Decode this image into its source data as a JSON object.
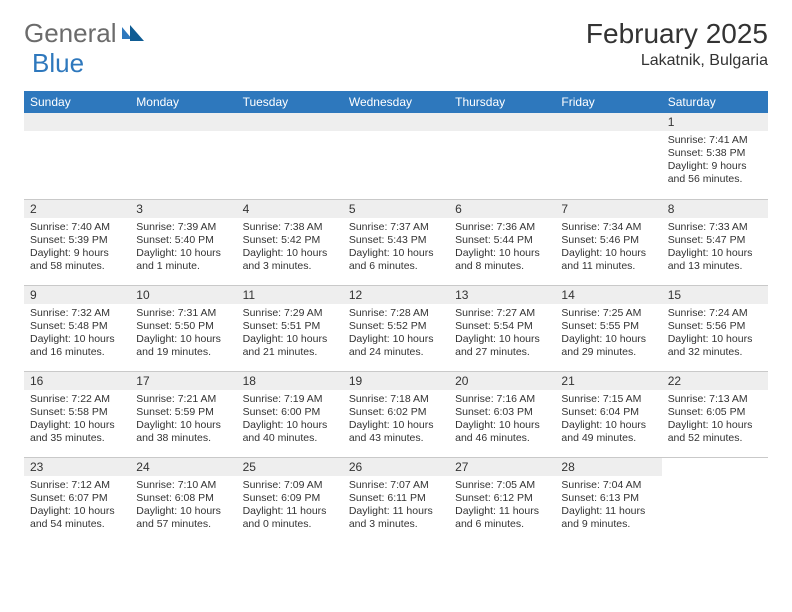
{
  "brand": {
    "part1": "General",
    "part2": "Blue"
  },
  "header": {
    "month": "February 2025",
    "location": "Lakatnik, Bulgaria"
  },
  "colors": {
    "header_bg": "#2e78bd",
    "daynum_bg": "#eeeeee",
    "border": "#c9c9c9",
    "text": "#333333",
    "page_bg": "#ffffff"
  },
  "dayNames": [
    "Sunday",
    "Monday",
    "Tuesday",
    "Wednesday",
    "Thursday",
    "Friday",
    "Saturday"
  ],
  "layout": {
    "weeks": 5,
    "cols": 7,
    "first_day_col": 6
  },
  "days": [
    {
      "n": "1",
      "sr": "Sunrise: 7:41 AM",
      "ss": "Sunset: 5:38 PM",
      "dl1": "Daylight: 9 hours",
      "dl2": "and 56 minutes."
    },
    {
      "n": "2",
      "sr": "Sunrise: 7:40 AM",
      "ss": "Sunset: 5:39 PM",
      "dl1": "Daylight: 9 hours",
      "dl2": "and 58 minutes."
    },
    {
      "n": "3",
      "sr": "Sunrise: 7:39 AM",
      "ss": "Sunset: 5:40 PM",
      "dl1": "Daylight: 10 hours",
      "dl2": "and 1 minute."
    },
    {
      "n": "4",
      "sr": "Sunrise: 7:38 AM",
      "ss": "Sunset: 5:42 PM",
      "dl1": "Daylight: 10 hours",
      "dl2": "and 3 minutes."
    },
    {
      "n": "5",
      "sr": "Sunrise: 7:37 AM",
      "ss": "Sunset: 5:43 PM",
      "dl1": "Daylight: 10 hours",
      "dl2": "and 6 minutes."
    },
    {
      "n": "6",
      "sr": "Sunrise: 7:36 AM",
      "ss": "Sunset: 5:44 PM",
      "dl1": "Daylight: 10 hours",
      "dl2": "and 8 minutes."
    },
    {
      "n": "7",
      "sr": "Sunrise: 7:34 AM",
      "ss": "Sunset: 5:46 PM",
      "dl1": "Daylight: 10 hours",
      "dl2": "and 11 minutes."
    },
    {
      "n": "8",
      "sr": "Sunrise: 7:33 AM",
      "ss": "Sunset: 5:47 PM",
      "dl1": "Daylight: 10 hours",
      "dl2": "and 13 minutes."
    },
    {
      "n": "9",
      "sr": "Sunrise: 7:32 AM",
      "ss": "Sunset: 5:48 PM",
      "dl1": "Daylight: 10 hours",
      "dl2": "and 16 minutes."
    },
    {
      "n": "10",
      "sr": "Sunrise: 7:31 AM",
      "ss": "Sunset: 5:50 PM",
      "dl1": "Daylight: 10 hours",
      "dl2": "and 19 minutes."
    },
    {
      "n": "11",
      "sr": "Sunrise: 7:29 AM",
      "ss": "Sunset: 5:51 PM",
      "dl1": "Daylight: 10 hours",
      "dl2": "and 21 minutes."
    },
    {
      "n": "12",
      "sr": "Sunrise: 7:28 AM",
      "ss": "Sunset: 5:52 PM",
      "dl1": "Daylight: 10 hours",
      "dl2": "and 24 minutes."
    },
    {
      "n": "13",
      "sr": "Sunrise: 7:27 AM",
      "ss": "Sunset: 5:54 PM",
      "dl1": "Daylight: 10 hours",
      "dl2": "and 27 minutes."
    },
    {
      "n": "14",
      "sr": "Sunrise: 7:25 AM",
      "ss": "Sunset: 5:55 PM",
      "dl1": "Daylight: 10 hours",
      "dl2": "and 29 minutes."
    },
    {
      "n": "15",
      "sr": "Sunrise: 7:24 AM",
      "ss": "Sunset: 5:56 PM",
      "dl1": "Daylight: 10 hours",
      "dl2": "and 32 minutes."
    },
    {
      "n": "16",
      "sr": "Sunrise: 7:22 AM",
      "ss": "Sunset: 5:58 PM",
      "dl1": "Daylight: 10 hours",
      "dl2": "and 35 minutes."
    },
    {
      "n": "17",
      "sr": "Sunrise: 7:21 AM",
      "ss": "Sunset: 5:59 PM",
      "dl1": "Daylight: 10 hours",
      "dl2": "and 38 minutes."
    },
    {
      "n": "18",
      "sr": "Sunrise: 7:19 AM",
      "ss": "Sunset: 6:00 PM",
      "dl1": "Daylight: 10 hours",
      "dl2": "and 40 minutes."
    },
    {
      "n": "19",
      "sr": "Sunrise: 7:18 AM",
      "ss": "Sunset: 6:02 PM",
      "dl1": "Daylight: 10 hours",
      "dl2": "and 43 minutes."
    },
    {
      "n": "20",
      "sr": "Sunrise: 7:16 AM",
      "ss": "Sunset: 6:03 PM",
      "dl1": "Daylight: 10 hours",
      "dl2": "and 46 minutes."
    },
    {
      "n": "21",
      "sr": "Sunrise: 7:15 AM",
      "ss": "Sunset: 6:04 PM",
      "dl1": "Daylight: 10 hours",
      "dl2": "and 49 minutes."
    },
    {
      "n": "22",
      "sr": "Sunrise: 7:13 AM",
      "ss": "Sunset: 6:05 PM",
      "dl1": "Daylight: 10 hours",
      "dl2": "and 52 minutes."
    },
    {
      "n": "23",
      "sr": "Sunrise: 7:12 AM",
      "ss": "Sunset: 6:07 PM",
      "dl1": "Daylight: 10 hours",
      "dl2": "and 54 minutes."
    },
    {
      "n": "24",
      "sr": "Sunrise: 7:10 AM",
      "ss": "Sunset: 6:08 PM",
      "dl1": "Daylight: 10 hours",
      "dl2": "and 57 minutes."
    },
    {
      "n": "25",
      "sr": "Sunrise: 7:09 AM",
      "ss": "Sunset: 6:09 PM",
      "dl1": "Daylight: 11 hours",
      "dl2": "and 0 minutes."
    },
    {
      "n": "26",
      "sr": "Sunrise: 7:07 AM",
      "ss": "Sunset: 6:11 PM",
      "dl1": "Daylight: 11 hours",
      "dl2": "and 3 minutes."
    },
    {
      "n": "27",
      "sr": "Sunrise: 7:05 AM",
      "ss": "Sunset: 6:12 PM",
      "dl1": "Daylight: 11 hours",
      "dl2": "and 6 minutes."
    },
    {
      "n": "28",
      "sr": "Sunrise: 7:04 AM",
      "ss": "Sunset: 6:13 PM",
      "dl1": "Daylight: 11 hours",
      "dl2": "and 9 minutes."
    }
  ]
}
